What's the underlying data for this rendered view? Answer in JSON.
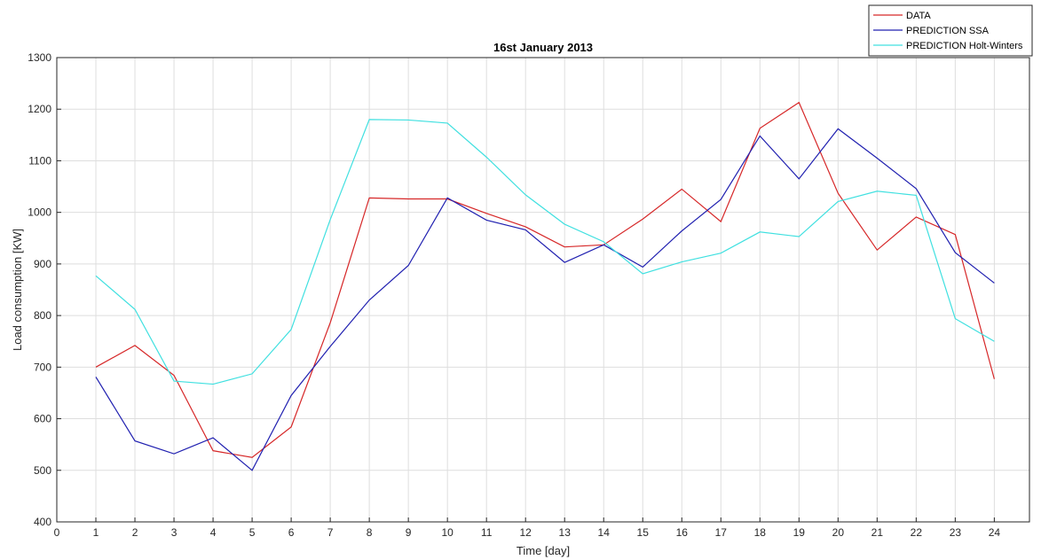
{
  "chart_data": {
    "type": "line",
    "title": "16st January 2013",
    "xlabel": "Time [day]",
    "ylabel": "Load consumption [KW]",
    "xlim": [
      0,
      24.9
    ],
    "ylim": [
      400,
      1300
    ],
    "xticks": [
      0,
      1,
      2,
      3,
      4,
      5,
      6,
      7,
      8,
      9,
      10,
      11,
      12,
      13,
      14,
      15,
      16,
      17,
      18,
      19,
      20,
      21,
      22,
      23,
      24
    ],
    "yticks": [
      400,
      500,
      600,
      700,
      800,
      900,
      1000,
      1100,
      1200,
      1300
    ],
    "grid": true,
    "legend_position": "top-right (outside)",
    "x": [
      1,
      2,
      3,
      4,
      5,
      6,
      7,
      8,
      9,
      10,
      11,
      12,
      13,
      14,
      15,
      16,
      17,
      18,
      19,
      20,
      21,
      22,
      23,
      24
    ],
    "series": [
      {
        "name": "DATA",
        "color": "#d62728",
        "values": [
          700,
          742,
          684,
          538,
          525,
          584,
          786,
          1028,
          1026,
          1026,
          998,
          972,
          933,
          937,
          987,
          1045,
          982,
          1163,
          1213,
          1037,
          927,
          991,
          957,
          677
        ]
      },
      {
        "name": "PREDICTION SSA",
        "color": "#2020b0",
        "values": [
          681,
          557,
          532,
          563,
          500,
          645,
          740,
          830,
          897,
          1028,
          985,
          966,
          903,
          937,
          894,
          964,
          1025,
          1148,
          1065,
          1162,
          1105,
          1046,
          922,
          863
        ]
      },
      {
        "name": "PREDICTION Holt-Winters",
        "color": "#40e0e0",
        "values": [
          877,
          812,
          673,
          667,
          687,
          773,
          986,
          1180,
          1179,
          1173,
          1107,
          1034,
          977,
          943,
          881,
          904,
          921,
          962,
          953,
          1021,
          1041,
          1033,
          794,
          750
        ]
      }
    ]
  }
}
